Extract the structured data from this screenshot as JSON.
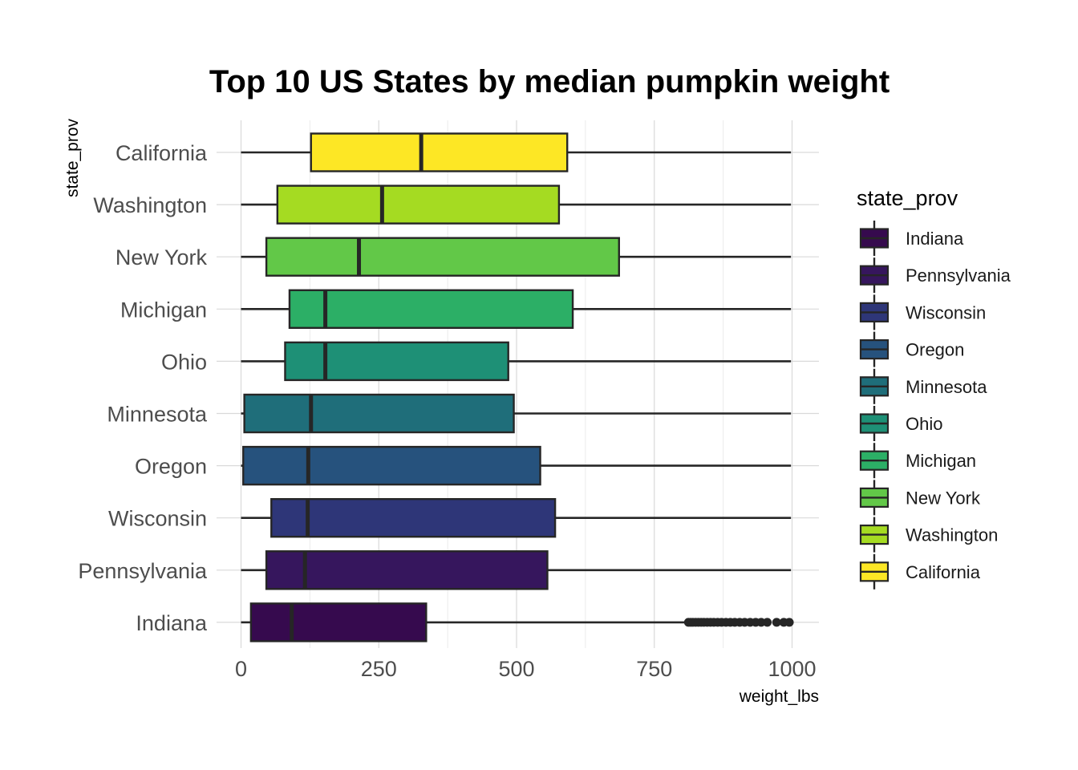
{
  "chart_data": {
    "type": "boxplot",
    "orientation": "horizontal",
    "title": "Top 10 US States by median pumpkin weight",
    "xlabel": "weight_lbs",
    "ylabel": "state_prov",
    "xlim": [
      0,
      1050
    ],
    "x_ticks": [
      0,
      250,
      500,
      750,
      1000
    ],
    "grid": true,
    "legend": {
      "title": "state_prov",
      "placement": "right",
      "entries": [
        "Indiana",
        "Pennsylvania",
        "Wisconsin",
        "Oregon",
        "Minnesota",
        "Ohio",
        "Michigan",
        "New York",
        "Washington",
        "California"
      ]
    },
    "categories": [
      "Indiana",
      "Pennsylvania",
      "Wisconsin",
      "Oregon",
      "Minnesota",
      "Ohio",
      "Michigan",
      "New York",
      "Washington",
      "California"
    ],
    "series": [
      {
        "name": "Indiana",
        "min": 0,
        "q1": 18,
        "median": 92,
        "q3": 336,
        "max": 808,
        "outliers": [
          812,
          816,
          820,
          825,
          830,
          835,
          840,
          846,
          852,
          858,
          865,
          872,
          880,
          888,
          896,
          905,
          914,
          924,
          934,
          944,
          955,
          972,
          985,
          995
        ],
        "color": "#360a4e"
      },
      {
        "name": "Pennsylvania",
        "min": 0,
        "q1": 46,
        "median": 116,
        "q3": 556,
        "max": 998,
        "outliers": [],
        "color": "#36165d"
      },
      {
        "name": "Wisconsin",
        "min": 0,
        "q1": 55,
        "median": 121,
        "q3": 570,
        "max": 998,
        "outliers": [],
        "color": "#2e3678"
      },
      {
        "name": "Oregon",
        "min": 0,
        "q1": 4,
        "median": 122,
        "q3": 543,
        "max": 998,
        "outliers": [],
        "color": "#26527d"
      },
      {
        "name": "Minnesota",
        "min": 0,
        "q1": 6,
        "median": 127,
        "q3": 495,
        "max": 998,
        "outliers": [],
        "color": "#1f6e7a"
      },
      {
        "name": "Ohio",
        "min": 0,
        "q1": 80,
        "median": 153,
        "q3": 485,
        "max": 998,
        "outliers": [],
        "color": "#1e9076"
      },
      {
        "name": "Michigan",
        "min": 0,
        "q1": 88,
        "median": 153,
        "q3": 602,
        "max": 998,
        "outliers": [],
        "color": "#2caf66"
      },
      {
        "name": "New York",
        "min": 0,
        "q1": 46,
        "median": 214,
        "q3": 686,
        "max": 998,
        "outliers": [],
        "color": "#62c848"
      },
      {
        "name": "Washington",
        "min": 0,
        "q1": 66,
        "median": 256,
        "q3": 577,
        "max": 998,
        "outliers": [],
        "color": "#a5db22"
      },
      {
        "name": "California",
        "min": 0,
        "q1": 127,
        "median": 327,
        "q3": 592,
        "max": 998,
        "outliers": [],
        "color": "#fde725"
      }
    ]
  }
}
